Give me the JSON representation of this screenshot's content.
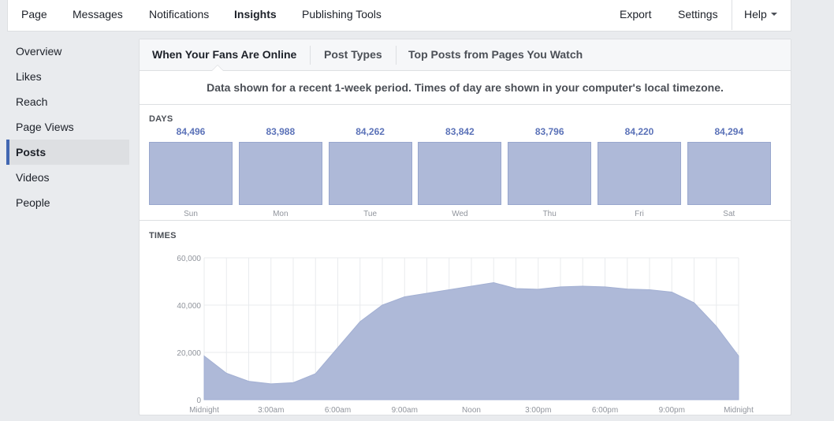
{
  "topnav": {
    "page": "Page",
    "messages": "Messages",
    "notifications": "Notifications",
    "insights": "Insights",
    "publishing_tools": "Publishing Tools",
    "export": "Export",
    "settings": "Settings",
    "help": "Help"
  },
  "sidebar": {
    "items": [
      {
        "label": "Overview"
      },
      {
        "label": "Likes"
      },
      {
        "label": "Reach"
      },
      {
        "label": "Page Views"
      },
      {
        "label": "Posts"
      },
      {
        "label": "Videos"
      },
      {
        "label": "People"
      }
    ],
    "active": "Posts"
  },
  "tabs": [
    {
      "label": "When Your Fans Are Online"
    },
    {
      "label": "Post Types"
    },
    {
      "label": "Top Posts from Pages You Watch"
    }
  ],
  "notice": "Data shown for a recent 1-week period. Times of day are shown in your computer's local timezone.",
  "days_label": "DAYS",
  "times_label": "TIMES",
  "colors": {
    "accent": "#4267b2",
    "bar_fill": "#aeb9d8",
    "value_text": "#5b72b8"
  },
  "chart_data": [
    {
      "type": "bar",
      "title": "DAYS",
      "categories": [
        "Sun",
        "Mon",
        "Tue",
        "Wed",
        "Thu",
        "Fri",
        "Sat"
      ],
      "values": [
        84496,
        83988,
        84262,
        83842,
        83796,
        84220,
        84294
      ],
      "value_labels": [
        "84,496",
        "83,988",
        "84,262",
        "83,842",
        "83,796",
        "84,220",
        "84,294"
      ]
    },
    {
      "type": "area",
      "title": "TIMES",
      "x_tick_labels": [
        "Midnight",
        "3:00am",
        "6:00am",
        "9:00am",
        "Noon",
        "3:00pm",
        "6:00pm",
        "9:00pm",
        "Midnight"
      ],
      "y_tick_labels": [
        "0",
        "20,000",
        "40,000",
        "60,000"
      ],
      "ylim": [
        0,
        60000
      ],
      "x": [
        0,
        1,
        2,
        3,
        4,
        5,
        6,
        7,
        8,
        9,
        10,
        11,
        12,
        13,
        14,
        15,
        16,
        17,
        18,
        19,
        20,
        21,
        22,
        23,
        24
      ],
      "values": [
        18500,
        11200,
        7800,
        6700,
        7200,
        11000,
        22000,
        33000,
        40000,
        43500,
        45000,
        46500,
        48000,
        49500,
        47000,
        46700,
        47700,
        48000,
        47700,
        46800,
        46500,
        45500,
        41000,
        31000,
        18500
      ],
      "grid": true
    }
  ]
}
